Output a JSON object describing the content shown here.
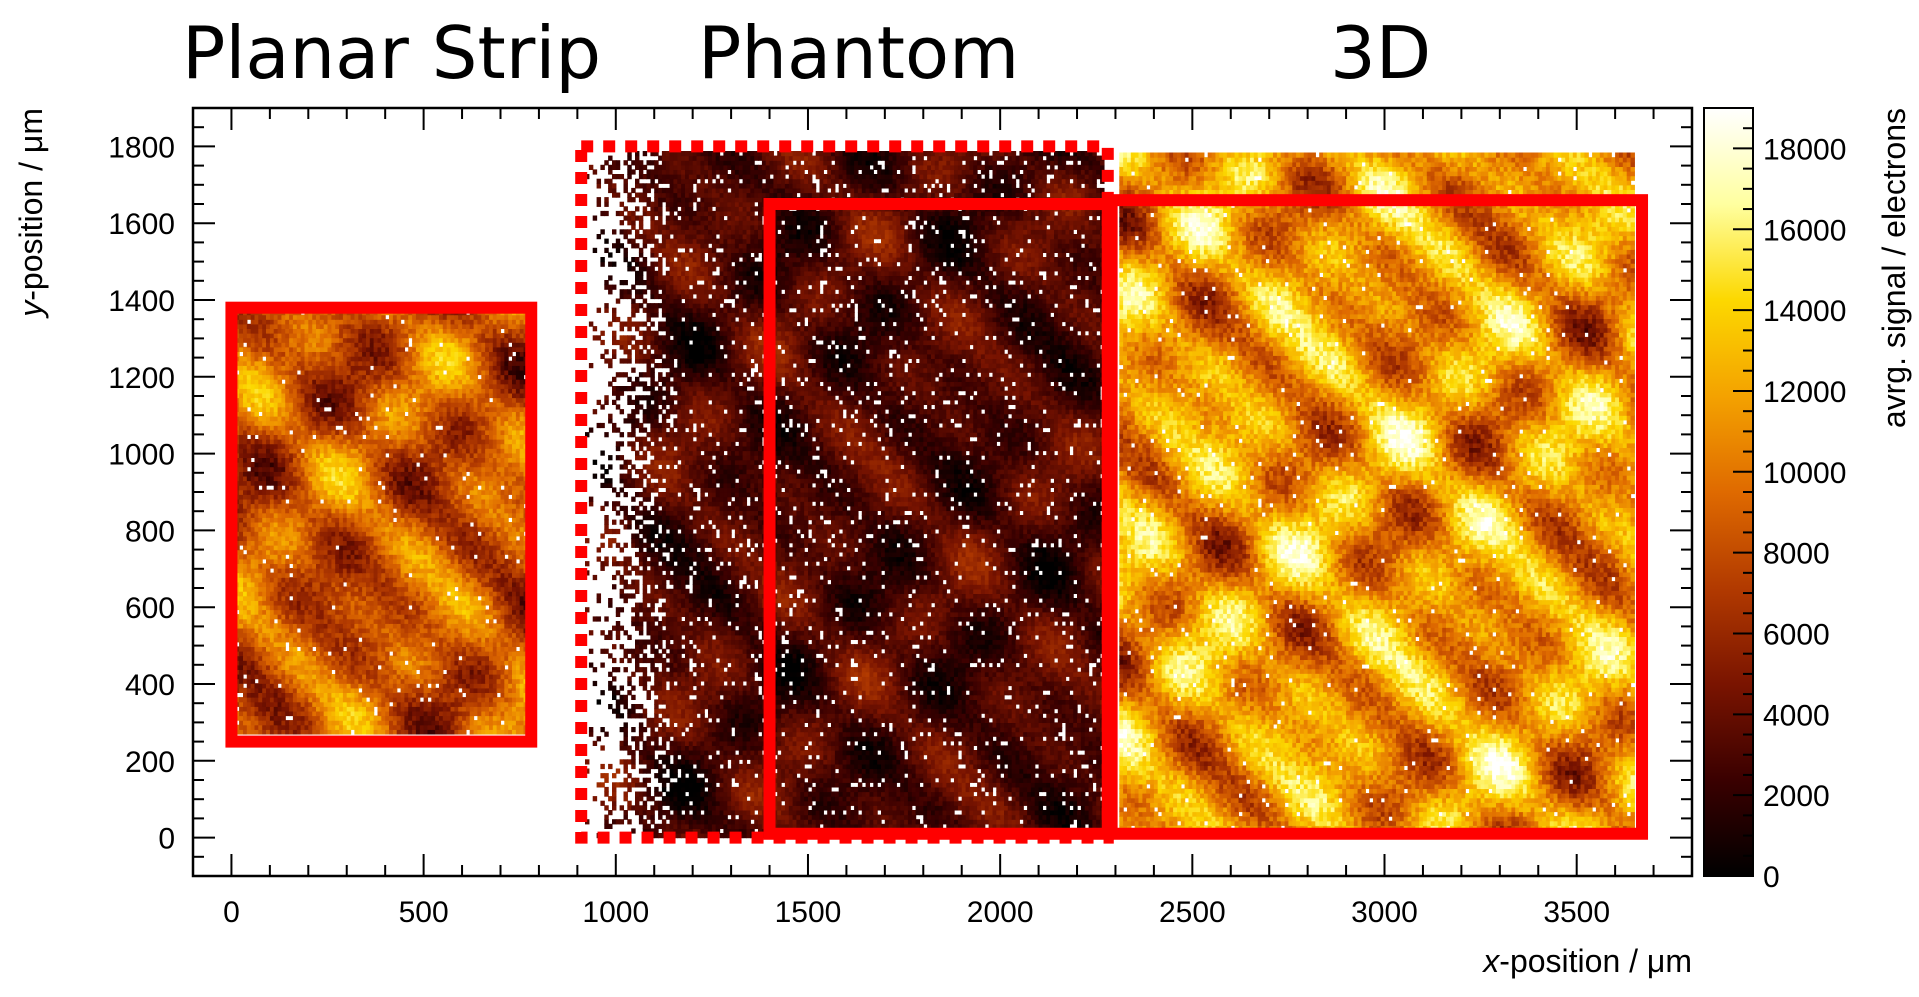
{
  "chart_data": {
    "type": "heatmap",
    "section_titles": [
      "Planar Strip",
      "Phantom",
      "3D"
    ],
    "xlabel": {
      "italic": "x",
      "rest": "-position / μm"
    },
    "ylabel": {
      "italic": "y",
      "rest": "-position / μm"
    },
    "colorbar_label": "avrg. signal / electrons",
    "xlim": [
      -100,
      3800
    ],
    "ylim": [
      -100,
      1900
    ],
    "xticks": [
      0,
      500,
      1000,
      1500,
      2000,
      2500,
      3000,
      3500
    ],
    "yticks": [
      0,
      200,
      400,
      600,
      800,
      1000,
      1200,
      1400,
      1600,
      1800
    ],
    "colorbar_range": [
      0,
      19000
    ],
    "colorbar_ticks": [
      0,
      2000,
      4000,
      6000,
      8000,
      10000,
      12000,
      14000,
      16000,
      18000
    ],
    "colorscale": [
      "#000000",
      "#3a0000",
      "#7a1400",
      "#b23a00",
      "#df6a00",
      "#f4a200",
      "#fcd800",
      "#ffffa0",
      "#ffffff"
    ],
    "regions": [
      {
        "name": "Planar Strip",
        "x": [
          0,
          780
        ],
        "y": [
          270,
          1370
        ],
        "mean_signal": 8500,
        "spread": 5500
      },
      {
        "name": "Phantom",
        "x": [
          910,
          2270
        ],
        "y": [
          0,
          1780
        ],
        "mean_signal": 3000,
        "spread": 3000
      },
      {
        "name": "3D",
        "x": [
          2310,
          3650
        ],
        "y": [
          20,
          1780
        ],
        "mean_signal": 11500,
        "spread": 6500
      }
    ],
    "highlight_boxes": [
      {
        "x": [
          0,
          780
        ],
        "y": [
          250,
          1380
        ],
        "style": "solid",
        "color": "#ff0000"
      },
      {
        "x": [
          910,
          2280
        ],
        "y": [
          0,
          1800
        ],
        "style": "dotted",
        "color": "#ff0000"
      },
      {
        "x": [
          1400,
          2280
        ],
        "y": [
          10,
          1650
        ],
        "style": "solid",
        "color": "#ff0000"
      },
      {
        "x": [
          2290,
          3670
        ],
        "y": [
          10,
          1660
        ],
        "style": "solid",
        "color": "#ff0000"
      }
    ]
  }
}
